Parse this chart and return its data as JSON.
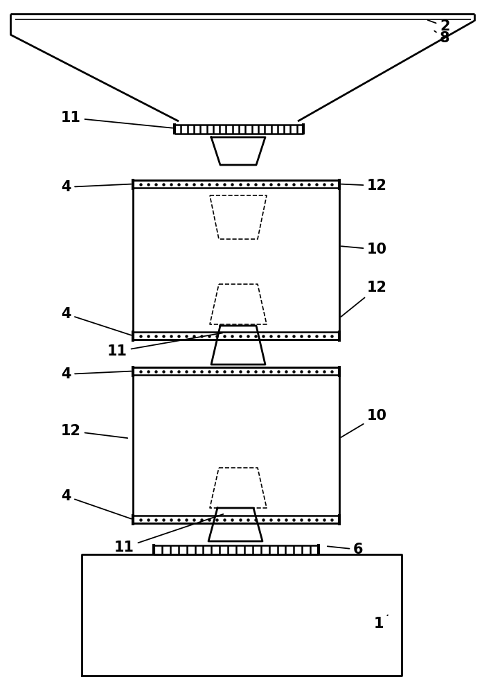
{
  "bg_color": "#ffffff",
  "line_color": "#000000",
  "lw": 2.0,
  "lw_thin": 1.2,
  "fig_w": 7.09,
  "fig_h": 10.0,
  "fs": 15
}
